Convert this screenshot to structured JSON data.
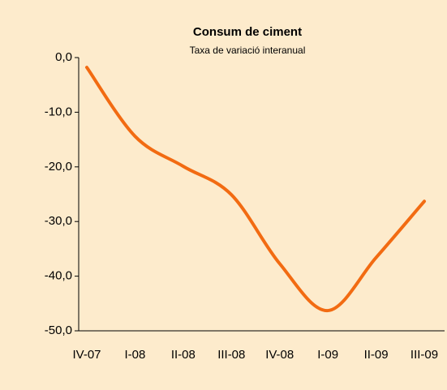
{
  "chart_data": {
    "type": "line",
    "title": "Consum de ciment",
    "subtitle": "Taxa de variació interanual",
    "categories": [
      "IV-07",
      "I-08",
      "II-08",
      "III-08",
      "IV-08",
      "I-09",
      "II-09",
      "III-09"
    ],
    "series": [
      {
        "color": "#f26b12",
        "values": [
          -1.8,
          -14.4,
          -19.9,
          -25.1,
          -37.7,
          -46.3,
          -36.6,
          -26.3
        ]
      }
    ],
    "ylim": [
      -50,
      0
    ],
    "yticks": [
      {
        "value": -50,
        "label": "-50,0"
      },
      {
        "value": -40,
        "label": "-40,0"
      },
      {
        "value": -30,
        "label": "-30,0"
      },
      {
        "value": -20,
        "label": "-20,0"
      },
      {
        "value": -10,
        "label": "-10,0"
      },
      {
        "value": 0,
        "label": "0,0"
      }
    ],
    "grid": false
  }
}
